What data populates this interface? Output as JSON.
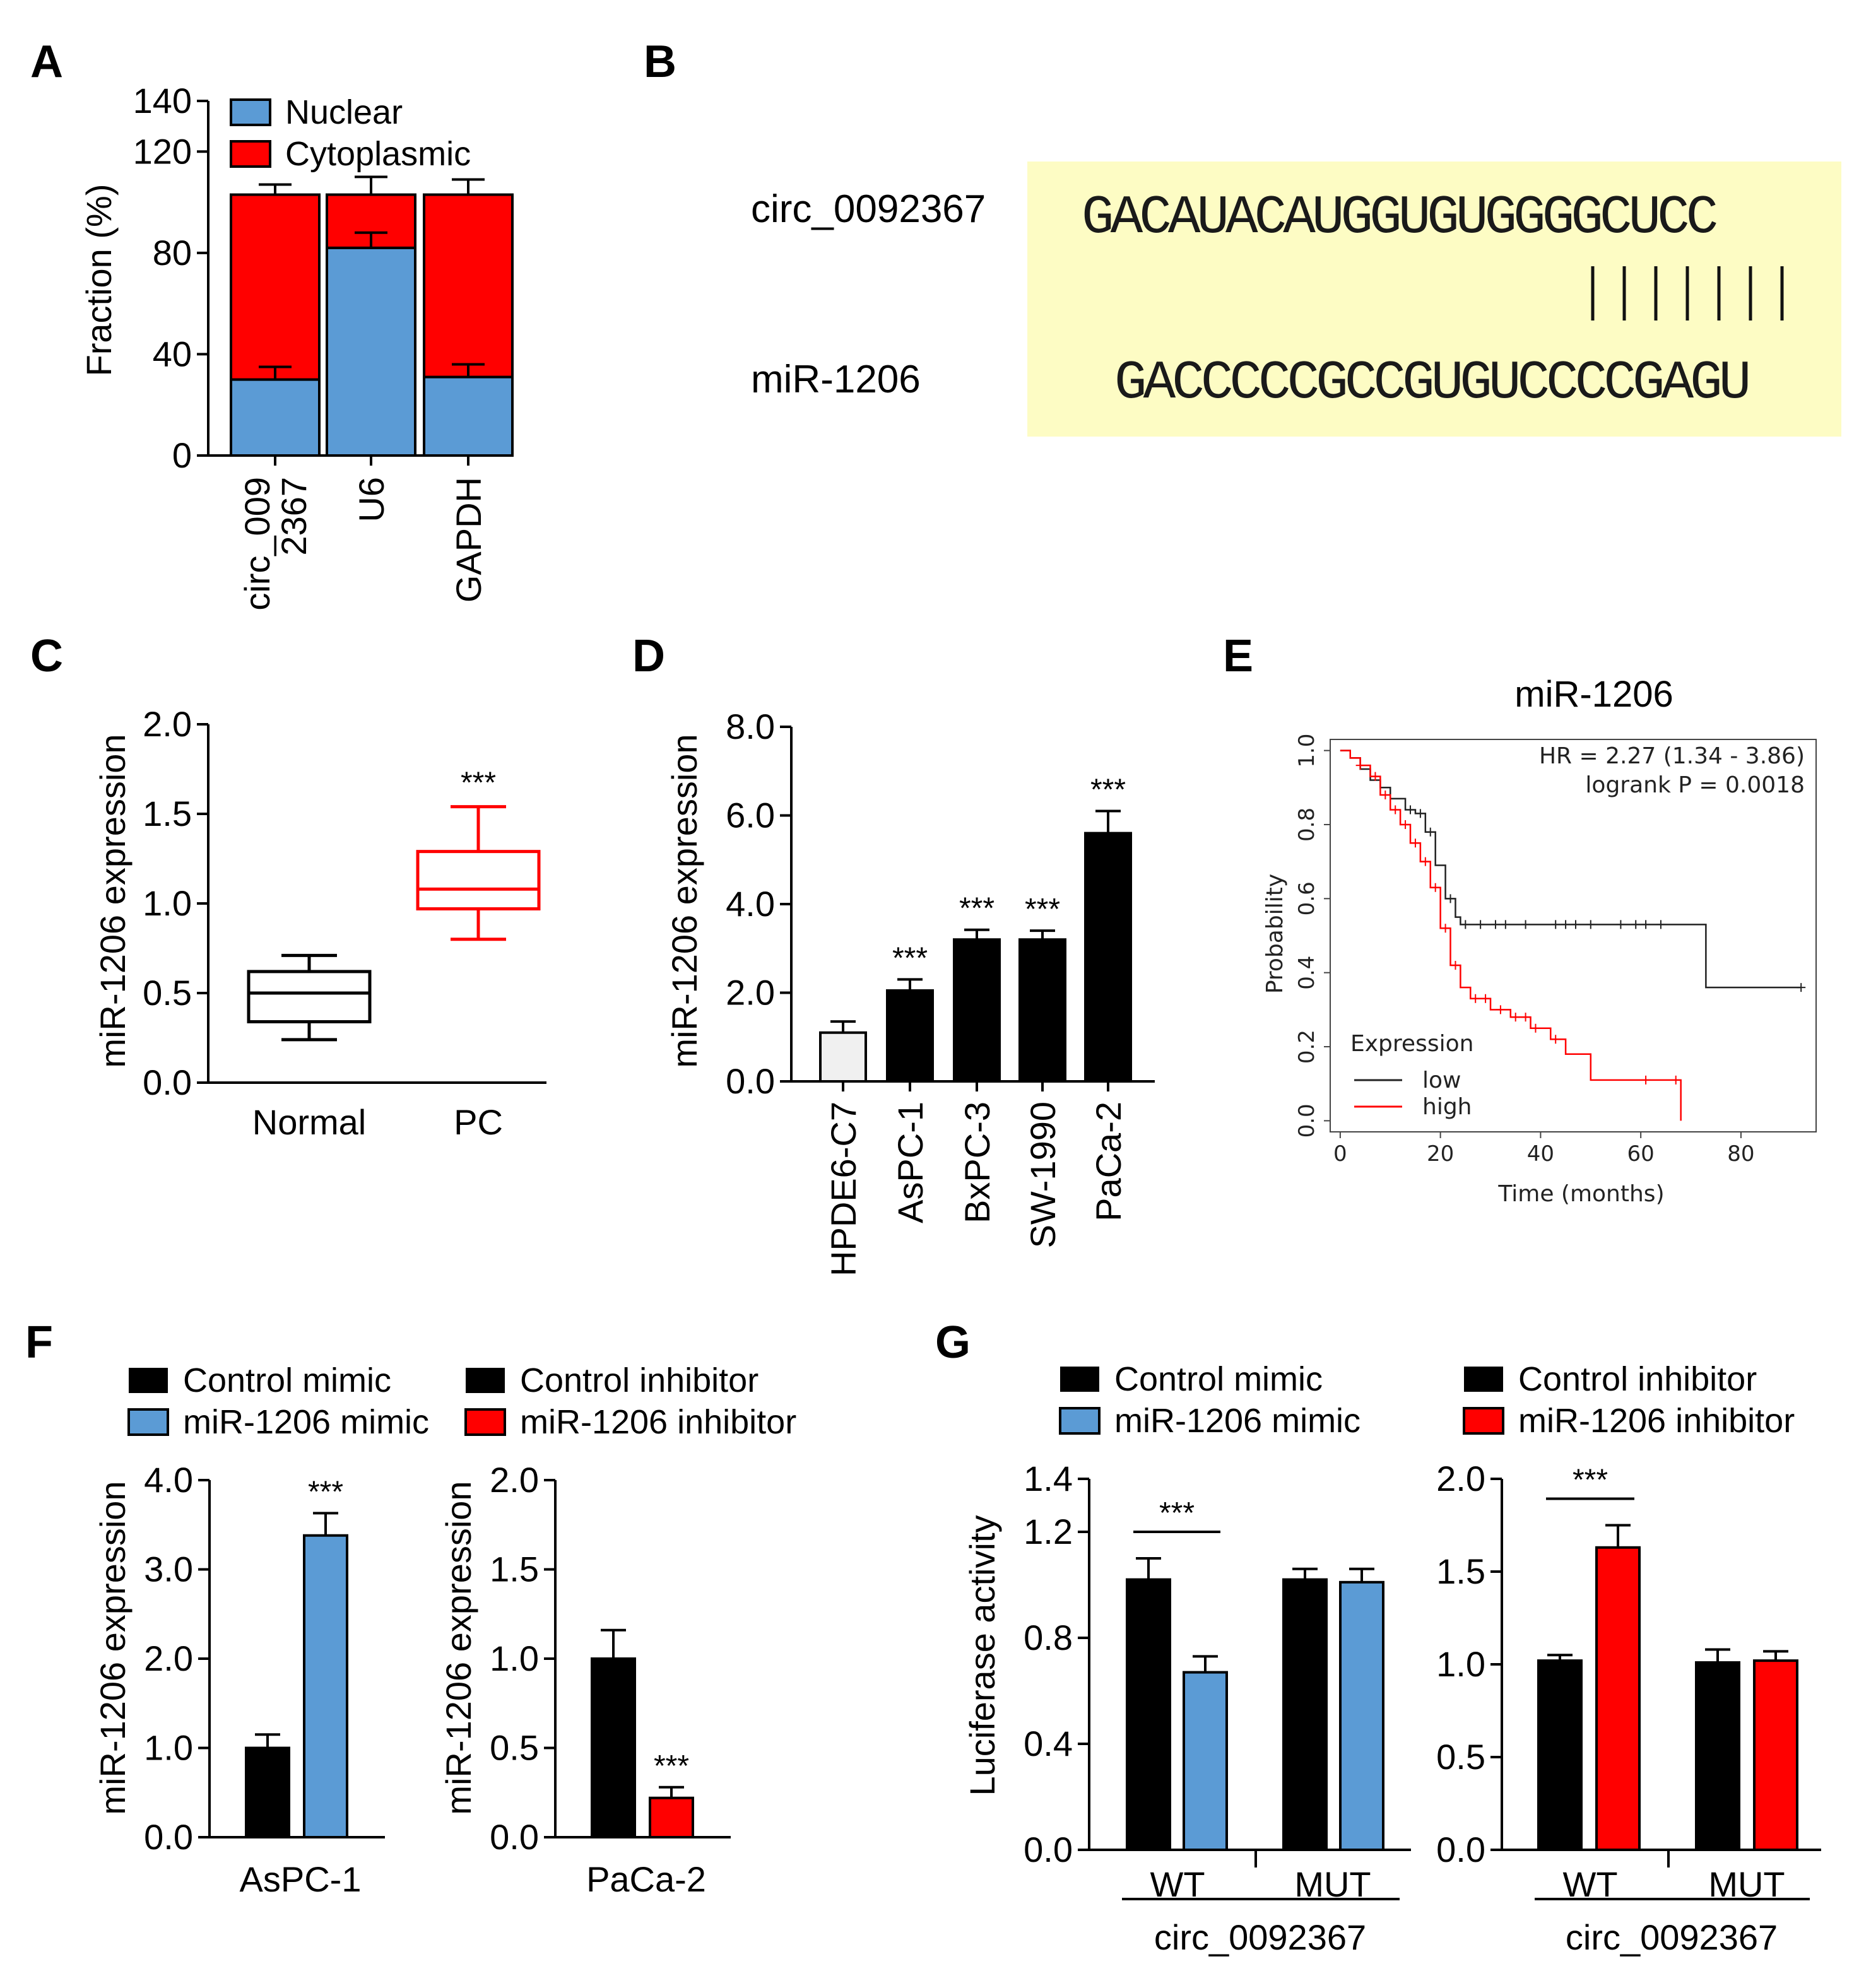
{
  "panel_letters": {
    "A": "A",
    "B": "B",
    "C": "C",
    "D": "D",
    "E": "E",
    "F": "F",
    "G": "G"
  },
  "colors": {
    "blue": "#5b9bd5",
    "red": "#ff0000",
    "black": "#000000",
    "light": "#f0f0f0",
    "yellow": "#fdfcc4",
    "km_red": "#ff0000",
    "km_black": "#222222"
  },
  "chart_data": [
    {
      "id": "A",
      "type": "bar",
      "stacked": true,
      "ylabel": "Fraction (%)",
      "ylim": [
        0,
        140
      ],
      "yticks": [
        0,
        40,
        80,
        120,
        140
      ],
      "categories": [
        "circ_009 2367",
        "U6",
        "GAPDH"
      ],
      "category_lines": [
        [
          "circ_009",
          "2367"
        ],
        [
          "U6"
        ],
        [
          "GAPDH"
        ]
      ],
      "series": [
        {
          "name": "Nuclear",
          "values": [
            30,
            82,
            31
          ],
          "errors": [
            5,
            6,
            5
          ]
        },
        {
          "name": "Cytoplasmic",
          "values": [
            73,
            21,
            72
          ],
          "errors": [
            4,
            7,
            6
          ]
        }
      ],
      "legend": [
        "Nuclear",
        "Cytoplasmic"
      ]
    },
    {
      "id": "B",
      "type": "table",
      "rows": [
        {
          "label": "circ_0092367",
          "sequence": "GACAUACAUGGUGUGGGGCUCC"
        },
        {
          "label": "miR-1206",
          "sequence": "GACCCCCGCCGUGUCCCCGAGU"
        }
      ],
      "pairing": "|||||||"
    },
    {
      "id": "C",
      "type": "box",
      "ylabel": "miR-1206 expression",
      "ylim": [
        0,
        2
      ],
      "yticks": [
        "0.0",
        "0.5",
        "1.0",
        "1.5",
        "2.0"
      ],
      "categories": [
        "Normal",
        "PC"
      ],
      "boxes": [
        {
          "min": 0.24,
          "q1": 0.34,
          "median": 0.5,
          "q3": 0.62,
          "max": 0.71
        },
        {
          "min": 0.8,
          "q1": 0.97,
          "median": 1.08,
          "q3": 1.29,
          "max": 1.54
        }
      ],
      "annotations": [
        "",
        "***"
      ]
    },
    {
      "id": "D",
      "type": "bar",
      "ylabel": "miR-1206 expression",
      "ylim": [
        0,
        8
      ],
      "yticks": [
        "0.0",
        "2.0",
        "4.0",
        "6.0",
        "8.0"
      ],
      "categories": [
        "HPDE6-C7",
        "AsPC-1",
        "BxPC-3",
        "SW-1990",
        "PaCa-2"
      ],
      "values": [
        1.1,
        2.05,
        3.2,
        3.2,
        5.6
      ],
      "errors": [
        0.25,
        0.25,
        0.22,
        0.2,
        0.5
      ],
      "annotations": [
        "",
        "***",
        "***",
        "***",
        "***"
      ]
    },
    {
      "id": "E",
      "type": "line",
      "title": "miR-1206",
      "xlabel": "Time (months)",
      "ylabel": "Probability",
      "xlim": [
        -2,
        95
      ],
      "ylim": [
        -0.03,
        1.03
      ],
      "xticks": [
        "0",
        "20",
        "40",
        "60",
        "80"
      ],
      "yticks": [
        "0.0",
        "0.2",
        "0.4",
        "0.6",
        "0.8",
        "1.0"
      ],
      "hr_text": "HR = 2.27 (1.34 - 3.86)",
      "p_text": "logrank P = 0.0018",
      "legend_title": "Expression",
      "series": [
        {
          "name": "low",
          "x": [
            0,
            2,
            4,
            6,
            8,
            10,
            13,
            15,
            17,
            19,
            21,
            23,
            24,
            73,
            92
          ],
          "y": [
            1.0,
            0.98,
            0.95,
            0.92,
            0.9,
            0.87,
            0.84,
            0.83,
            0.78,
            0.69,
            0.6,
            0.55,
            0.53,
            0.36,
            0.36
          ]
        },
        {
          "name": "high",
          "x": [
            0,
            2,
            4,
            6,
            8,
            10,
            12,
            14,
            16,
            18,
            20,
            22,
            24,
            26,
            30,
            34,
            38,
            42,
            45,
            50,
            55,
            60,
            65,
            67,
            68
          ],
          "y": [
            1.0,
            0.98,
            0.96,
            0.93,
            0.88,
            0.84,
            0.8,
            0.75,
            0.7,
            0.63,
            0.52,
            0.42,
            0.36,
            0.33,
            0.3,
            0.28,
            0.25,
            0.22,
            0.18,
            0.11,
            0.11,
            0.11,
            0.11,
            0.11,
            0.0
          ]
        }
      ],
      "censor_low": [
        14,
        16,
        18,
        22,
        25,
        28,
        31,
        33,
        37,
        43,
        45,
        47,
        50,
        56,
        59,
        61,
        64,
        92
      ],
      "censor_high": [
        4,
        7,
        9,
        11,
        13,
        15,
        17,
        19,
        21,
        23,
        27,
        29,
        32,
        35,
        37,
        39,
        43,
        61,
        67
      ]
    },
    {
      "id": "F",
      "type": "bar",
      "legend": [
        {
          "name": "Control mimic",
          "color": "#000000"
        },
        {
          "name": "miR-1206 mimic",
          "color": "#5b9bd5"
        },
        {
          "name": "Control inhibitor",
          "color": "#000000"
        },
        {
          "name": "miR-1206 inhibitor",
          "color": "#ff0000"
        }
      ],
      "subplots": [
        {
          "xlabel": "AsPC-1",
          "ylabel": "miR-1206 expression",
          "ylim": [
            0,
            4
          ],
          "yticks": [
            "0.0",
            "1.0",
            "2.0",
            "3.0",
            "4.0"
          ],
          "values": [
            1.0,
            3.38
          ],
          "errors": [
            0.15,
            0.25
          ],
          "colors": [
            "#000000",
            "#5b9bd5"
          ],
          "annotations": [
            "",
            "***"
          ]
        },
        {
          "xlabel": "PaCa-2",
          "ylabel": "miR-1206 expression",
          "ylim": [
            0,
            2
          ],
          "yticks": [
            "0.0",
            "0.5",
            "1.0",
            "1.5",
            "2.0"
          ],
          "values": [
            1.0,
            0.22
          ],
          "errors": [
            0.16,
            0.06
          ],
          "colors": [
            "#000000",
            "#ff0000"
          ],
          "annotations": [
            "",
            "***"
          ]
        }
      ]
    },
    {
      "id": "G",
      "type": "bar",
      "legend": [
        {
          "name": "Control mimic",
          "color": "#000000"
        },
        {
          "name": "miR-1206 mimic",
          "color": "#5b9bd5"
        },
        {
          "name": "Control inhibitor",
          "color": "#000000"
        },
        {
          "name": "miR-1206 inhibitor",
          "color": "#ff0000"
        }
      ],
      "subplots": [
        {
          "ylabel": "Luciferase activity",
          "ylim": [
            0,
            1.4
          ],
          "yticks": [
            "0.0",
            "0.4",
            "0.8",
            "1.2",
            "1.4"
          ],
          "groups": [
            "WT",
            "MUT"
          ],
          "xlabel": "circ_0092367",
          "values": [
            1.02,
            0.67,
            1.02,
            1.01
          ],
          "errors": [
            0.08,
            0.06,
            0.04,
            0.05
          ],
          "colors": [
            "#000000",
            "#5b9bd5",
            "#000000",
            "#5b9bd5"
          ],
          "annotation": "***"
        },
        {
          "ylabel": "",
          "ylim": [
            0,
            2
          ],
          "yticks": [
            "0.0",
            "0.5",
            "1.0",
            "1.5",
            "2.0"
          ],
          "groups": [
            "WT",
            "MUT"
          ],
          "xlabel": "circ_0092367",
          "values": [
            1.02,
            1.63,
            1.01,
            1.02
          ],
          "errors": [
            0.03,
            0.12,
            0.07,
            0.05
          ],
          "colors": [
            "#000000",
            "#ff0000",
            "#000000",
            "#ff0000"
          ],
          "annotation": "***"
        }
      ]
    }
  ]
}
